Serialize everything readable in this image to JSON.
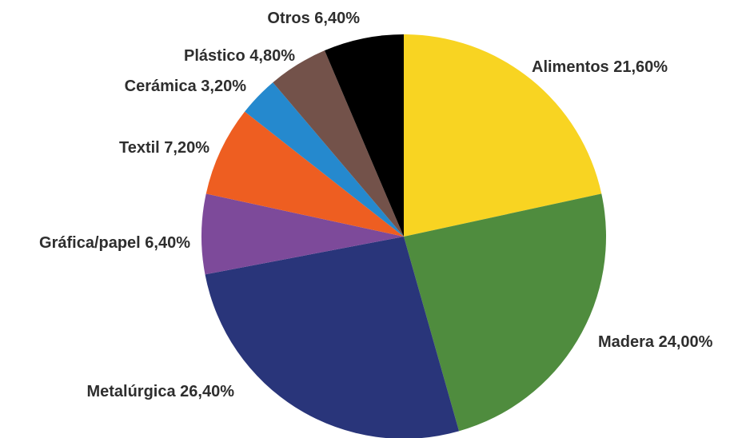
{
  "chart_data": {
    "type": "pie",
    "title": "",
    "start": "top",
    "direction": "clockwise",
    "slices": [
      {
        "name": "Alimentos",
        "value": 21.6,
        "label": "Alimentos 21,60%",
        "color": "#F8D422"
      },
      {
        "name": "Madera",
        "value": 24.0,
        "label": "Madera 24,00%",
        "color": "#4F8C3E"
      },
      {
        "name": "Metalúrgica",
        "value": 26.4,
        "label": "Metalúrgica 26,40%",
        "color": "#29357A"
      },
      {
        "name": "Gráfica/papel",
        "value": 6.4,
        "label": "Gráfica/papel 6,40%",
        "color": "#7D4A9A"
      },
      {
        "name": "Textil",
        "value": 7.2,
        "label": "Textil 7,20%",
        "color": "#EE5E21"
      },
      {
        "name": "Cerámica",
        "value": 3.2,
        "label": "Cerámica 3,20%",
        "color": "#2589CE"
      },
      {
        "name": "Plástico",
        "value": 4.8,
        "label": "Plástico 4,80%",
        "color": "#73524A"
      },
      {
        "name": "Otros",
        "value": 6.4,
        "label": "Otros 6,40%",
        "color": "#000000"
      }
    ]
  }
}
